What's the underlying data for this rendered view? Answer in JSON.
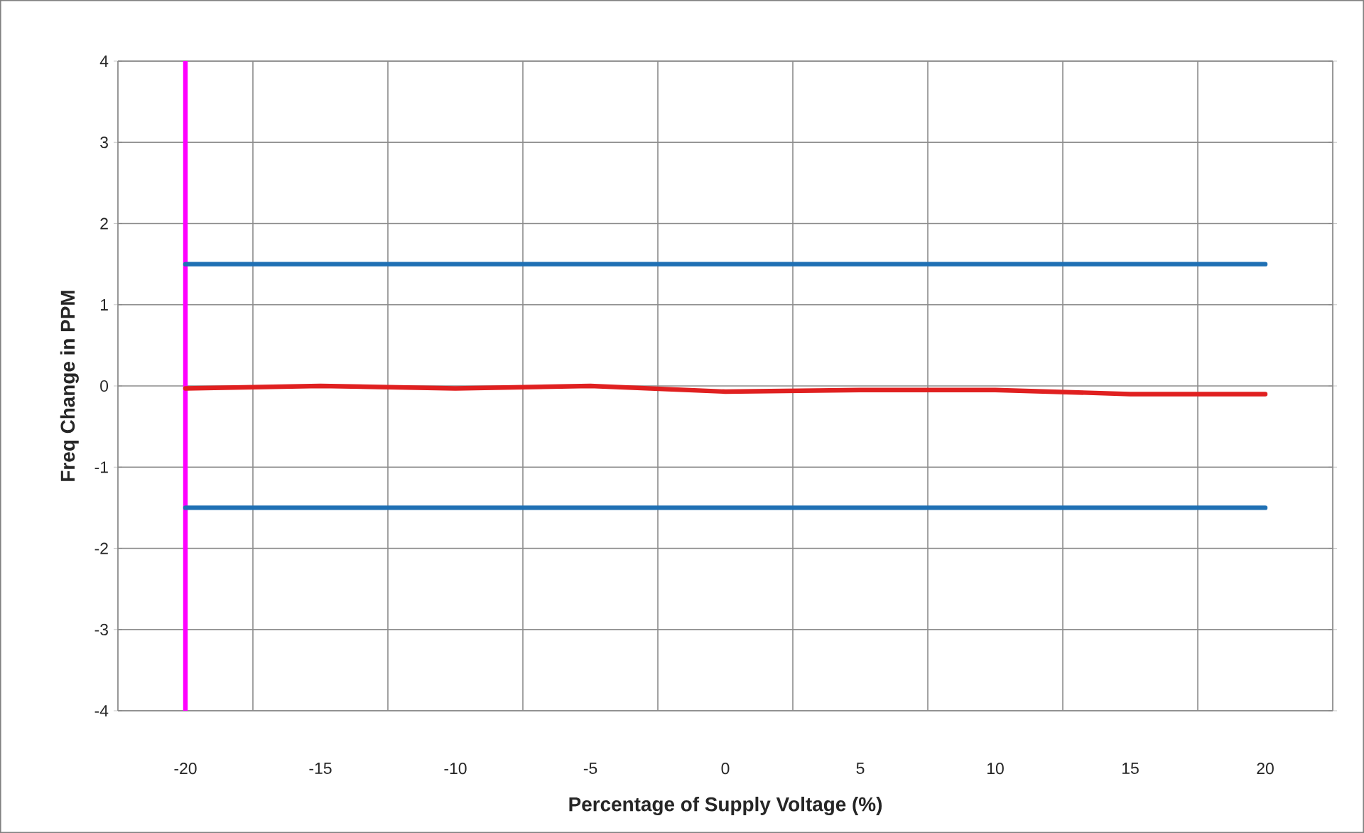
{
  "chart_data": {
    "type": "line",
    "xlabel": "Percentage of Supply Voltage (%)",
    "ylabel": "Freq Change in PPM",
    "x": [
      -20,
      -15,
      -10,
      -5,
      0,
      5,
      10,
      15,
      20
    ],
    "series": [
      {
        "color": "#1f70b4",
        "values": [
          1.5,
          1.5,
          1.5,
          1.5,
          1.5,
          1.5,
          1.5,
          1.5,
          1.5
        ]
      },
      {
        "color": "#1f70b4",
        "values": [
          -1.5,
          -1.5,
          -1.5,
          -1.5,
          -1.5,
          -1.5,
          -1.5,
          -1.5,
          -1.5
        ]
      },
      {
        "color": "#e02020",
        "values": [
          -0.03,
          0.0,
          -0.03,
          0.0,
          -0.07,
          -0.05,
          -0.05,
          -0.1,
          -0.1
        ]
      }
    ],
    "ref_lines": [
      {
        "axis": "x",
        "value": -20,
        "color": "#ff00ff"
      }
    ],
    "xlim": [
      -22.5,
      22.5
    ],
    "xticks": [
      {
        "value": -22.5,
        "label": null
      },
      -20,
      {
        "value": -17.5,
        "label": null
      },
      -15,
      {
        "value": -12.5,
        "label": null
      },
      -10,
      {
        "value": -7.5,
        "label": null
      },
      -5,
      {
        "value": -2.5,
        "label": null
      },
      0,
      {
        "value": 2.5,
        "label": null
      },
      5,
      {
        "value": 7.5,
        "label": null
      },
      10,
      {
        "value": 12.5,
        "label": null
      },
      15,
      {
        "value": 17.5,
        "label": null
      },
      20,
      {
        "value": 22.5,
        "label": null
      }
    ],
    "ylim": [
      -4,
      4
    ],
    "yticks": [
      -4,
      -3,
      -2,
      -1,
      0,
      1,
      2,
      3,
      4
    ],
    "grid": true,
    "marker": "none",
    "line_style": "solid"
  }
}
